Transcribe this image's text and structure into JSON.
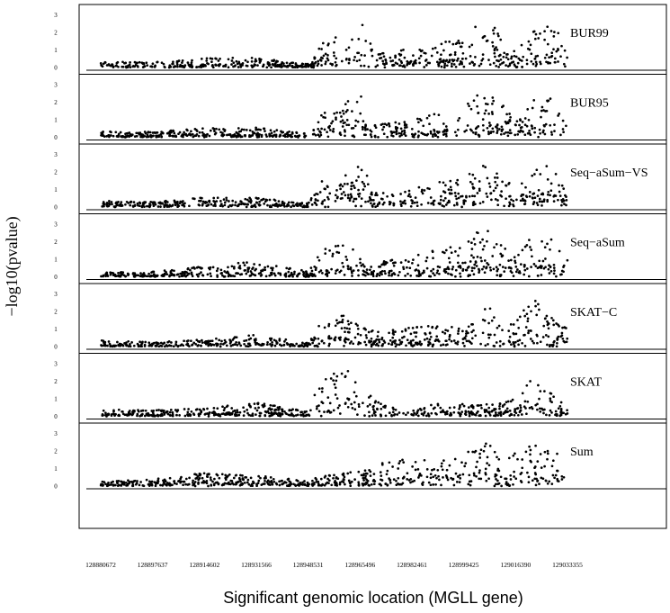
{
  "chart_data": {
    "type": "scatter",
    "ylabel": "−log10(pvalue)",
    "xlabel": "Significant genomic location (MGLL gene)",
    "x_ticks": [
      "128880672",
      "128897637",
      "128914602",
      "128931566",
      "128948531",
      "128965496",
      "128982461",
      "128999425",
      "129016390",
      "129033355"
    ],
    "x_range": [
      128876000,
      129060000
    ],
    "y_ticks": [
      "0",
      "1",
      "2",
      "3"
    ],
    "ylim": [
      0,
      3.2
    ],
    "grid": false,
    "marker_color": "#000000",
    "series": [
      {
        "name": "BUR99",
        "profile": [
          [
            128880672,
            0.35
          ],
          [
            128897637,
            0.3
          ],
          [
            128914602,
            0.55
          ],
          [
            128931566,
            0.55
          ],
          [
            128948531,
            0.2
          ],
          [
            128953000,
            1.5
          ],
          [
            128962000,
            2.0
          ],
          [
            128966000,
            2.9
          ],
          [
            128970000,
            0.8
          ],
          [
            128975000,
            0.9
          ],
          [
            128982461,
            1.1
          ],
          [
            128990000,
            1.4
          ],
          [
            128999425,
            1.6
          ],
          [
            129003000,
            2.4
          ],
          [
            129008000,
            2.5
          ],
          [
            129012000,
            2.0
          ],
          [
            129016390,
            0.9
          ],
          [
            129022000,
            2.3
          ],
          [
            129028000,
            2.4
          ],
          [
            129033355,
            1.4
          ]
        ]
      },
      {
        "name": "BUR95",
        "profile": [
          [
            128880672,
            0.35
          ],
          [
            128897637,
            0.3
          ],
          [
            128914602,
            0.55
          ],
          [
            128931566,
            0.55
          ],
          [
            128948531,
            0.2
          ],
          [
            128953000,
            1.5
          ],
          [
            128962000,
            2.1
          ],
          [
            128966000,
            3.0
          ],
          [
            128970000,
            0.8
          ],
          [
            128975000,
            0.9
          ],
          [
            128982461,
            1.1
          ],
          [
            128990000,
            1.4
          ],
          [
            128999425,
            1.6
          ],
          [
            129003000,
            2.4
          ],
          [
            129008000,
            2.5
          ],
          [
            129012000,
            2.0
          ],
          [
            129016390,
            0.9
          ],
          [
            129022000,
            2.3
          ],
          [
            129028000,
            2.4
          ],
          [
            129033355,
            1.4
          ]
        ]
      },
      {
        "name": "Seq−aSum−VS",
        "profile": [
          [
            128880672,
            0.35
          ],
          [
            128897637,
            0.3
          ],
          [
            128914602,
            0.55
          ],
          [
            128931566,
            0.55
          ],
          [
            128948531,
            0.2
          ],
          [
            128953000,
            1.5
          ],
          [
            128962000,
            2.0
          ],
          [
            128966000,
            2.9
          ],
          [
            128970000,
            0.8
          ],
          [
            128975000,
            0.9
          ],
          [
            128982461,
            1.1
          ],
          [
            128990000,
            1.4
          ],
          [
            128999425,
            1.6
          ],
          [
            129003000,
            2.4
          ],
          [
            129008000,
            2.5
          ],
          [
            129012000,
            2.0
          ],
          [
            129016390,
            0.9
          ],
          [
            129022000,
            2.3
          ],
          [
            129028000,
            2.4
          ],
          [
            129033355,
            1.4
          ]
        ]
      },
      {
        "name": "Seq−aSum",
        "profile": [
          [
            128880672,
            0.25
          ],
          [
            128897637,
            0.3
          ],
          [
            128914602,
            0.6
          ],
          [
            128931566,
            0.9
          ],
          [
            128948531,
            0.3
          ],
          [
            128953000,
            1.6
          ],
          [
            128962000,
            1.9
          ],
          [
            128966000,
            1.0
          ],
          [
            128970000,
            0.8
          ],
          [
            128975000,
            1.0
          ],
          [
            128982461,
            1.2
          ],
          [
            128990000,
            1.6
          ],
          [
            128999425,
            1.8
          ],
          [
            129003000,
            2.6
          ],
          [
            129008000,
            2.7
          ],
          [
            129012000,
            1.8
          ],
          [
            129016390,
            1.3
          ],
          [
            129022000,
            2.6
          ],
          [
            129028000,
            2.2
          ],
          [
            129033355,
            1.2
          ]
        ]
      },
      {
        "name": "SKAT−C",
        "profile": [
          [
            128880672,
            0.35
          ],
          [
            128897637,
            0.25
          ],
          [
            128914602,
            0.4
          ],
          [
            128931566,
            0.7
          ],
          [
            128948531,
            0.2
          ],
          [
            128953000,
            1.6
          ],
          [
            128962000,
            1.8
          ],
          [
            128966000,
            1.2
          ],
          [
            128970000,
            0.9
          ],
          [
            128975000,
            1.0
          ],
          [
            128982461,
            1.1
          ],
          [
            128990000,
            1.2
          ],
          [
            128999425,
            1.1
          ],
          [
            129003000,
            2.0
          ],
          [
            129008000,
            2.2
          ],
          [
            129012000,
            1.3
          ],
          [
            129016390,
            1.3
          ],
          [
            129022000,
            3.1
          ],
          [
            129028000,
            2.0
          ],
          [
            129033355,
            1.0
          ]
        ]
      },
      {
        "name": "SKAT",
        "profile": [
          [
            128880672,
            0.4
          ],
          [
            128897637,
            0.35
          ],
          [
            128914602,
            0.45
          ],
          [
            128931566,
            0.8
          ],
          [
            128948531,
            0.3
          ],
          [
            128953000,
            2.4
          ],
          [
            128962000,
            2.6
          ],
          [
            128966000,
            2.4
          ],
          [
            128970000,
            0.9
          ],
          [
            128975000,
            0.6
          ],
          [
            128982461,
            0.3
          ],
          [
            128990000,
            0.8
          ],
          [
            128999425,
            0.7
          ],
          [
            129003000,
            0.6
          ],
          [
            129008000,
            0.8
          ],
          [
            129012000,
            0.8
          ],
          [
            129016390,
            1.0
          ],
          [
            129022000,
            2.4
          ],
          [
            129028000,
            1.3
          ],
          [
            129033355,
            0.7
          ]
        ]
      },
      {
        "name": "Sum",
        "profile": [
          [
            128880672,
            0.25
          ],
          [
            128897637,
            0.4
          ],
          [
            128914602,
            0.75
          ],
          [
            128931566,
            0.6
          ],
          [
            128948531,
            0.3
          ],
          [
            128953000,
            0.6
          ],
          [
            128962000,
            0.9
          ],
          [
            128966000,
            0.8
          ],
          [
            128970000,
            1.1
          ],
          [
            128975000,
            1.5
          ],
          [
            128982461,
            1.5
          ],
          [
            128990000,
            1.5
          ],
          [
            128999425,
            1.7
          ],
          [
            129003000,
            2.4
          ],
          [
            129008000,
            2.6
          ],
          [
            129012000,
            1.4
          ],
          [
            129016390,
            2.0
          ],
          [
            129022000,
            2.4
          ],
          [
            129028000,
            2.0
          ],
          [
            129033355,
            1.6
          ]
        ]
      }
    ]
  }
}
